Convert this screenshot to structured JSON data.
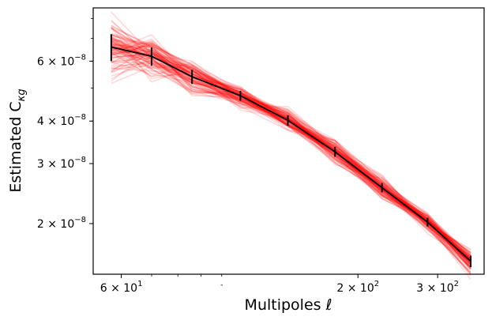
{
  "chart_data": {
    "type": "line",
    "xlabel": "Multipoles ℓ",
    "ylabel": "Estimated C",
    "ylabel_subscript": "κg",
    "xscale": "log",
    "yscale": "log",
    "xlim": [
      52,
      380
    ],
    "ylim": [
      1.42e-08,
      8.6e-08
    ],
    "x_ticks": [
      {
        "value": 60,
        "mantissa": "6 × 10",
        "exponent": "1"
      },
      {
        "value": 200,
        "mantissa": "2 × 10",
        "exponent": "2"
      },
      {
        "value": 300,
        "mantissa": "3 × 10",
        "exponent": "2"
      }
    ],
    "x_minor_tick_label": "-",
    "y_ticks": [
      {
        "value": 2e-08,
        "mantissa": "2 × 10",
        "exponent": "−8"
      },
      {
        "value": 3e-08,
        "mantissa": "3 × 10",
        "exponent": "−8"
      },
      {
        "value": 4e-08,
        "mantissa": "4 × 10",
        "exponent": "−8"
      },
      {
        "value": 6e-08,
        "mantissa": "6 × 10",
        "exponent": "−8"
      }
    ],
    "mean_series": {
      "color": "#000000",
      "x": [
        57,
        70,
        86,
        110,
        140,
        178,
        226,
        285,
        355
      ],
      "y": [
        6.6e-08,
        6.2e-08,
        5.4e-08,
        4.75e-08,
        4.02e-08,
        3.25e-08,
        2.55e-08,
        2.02e-08,
        1.55e-08
      ],
      "yerr": [
        6e-09,
        3.8e-09,
        2.6e-09,
        1.6e-09,
        1.4e-09,
        1.1e-09,
        8e-10,
        6e-10,
        6e-10
      ]
    },
    "realizations": {
      "count": 100,
      "color": "#ff0000",
      "opacity": 0.15
    }
  }
}
